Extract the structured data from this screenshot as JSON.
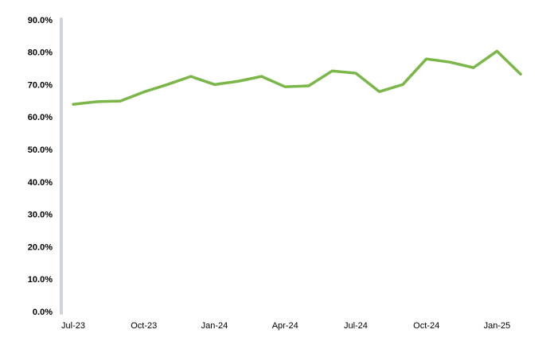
{
  "chart_data": {
    "type": "line",
    "categories": [
      "Jul-23",
      null,
      null,
      "Oct-23",
      null,
      null,
      "Jan-24",
      null,
      null,
      "Apr-24",
      null,
      null,
      "Jul-24",
      null,
      null,
      "Oct-24",
      null,
      null,
      "Jan-25",
      null
    ],
    "series": [
      {
        "color": "#7ab648",
        "values": [
          64.2,
          65.0,
          65.2,
          68.0,
          70.3,
          72.8,
          70.3,
          71.3,
          72.8,
          69.6,
          69.9,
          74.5,
          73.8,
          68.1,
          70.3,
          78.2,
          77.2,
          75.5,
          80.6,
          73.5
        ]
      }
    ],
    "ylim": [
      0,
      90
    ],
    "yticks": [
      {
        "value": 0,
        "label": "0.0%"
      },
      {
        "value": 10,
        "label": "10.0%"
      },
      {
        "value": 20,
        "label": "20.0%"
      },
      {
        "value": 30,
        "label": "30.0%"
      },
      {
        "value": 40,
        "label": "40.0%"
      },
      {
        "value": 50,
        "label": "50.0%"
      },
      {
        "value": 60,
        "label": "60.0%"
      },
      {
        "value": 70,
        "label": "70.0%"
      },
      {
        "value": 80,
        "label": "80.0%"
      },
      {
        "value": 90,
        "label": "90.0%"
      }
    ],
    "grid": false
  }
}
